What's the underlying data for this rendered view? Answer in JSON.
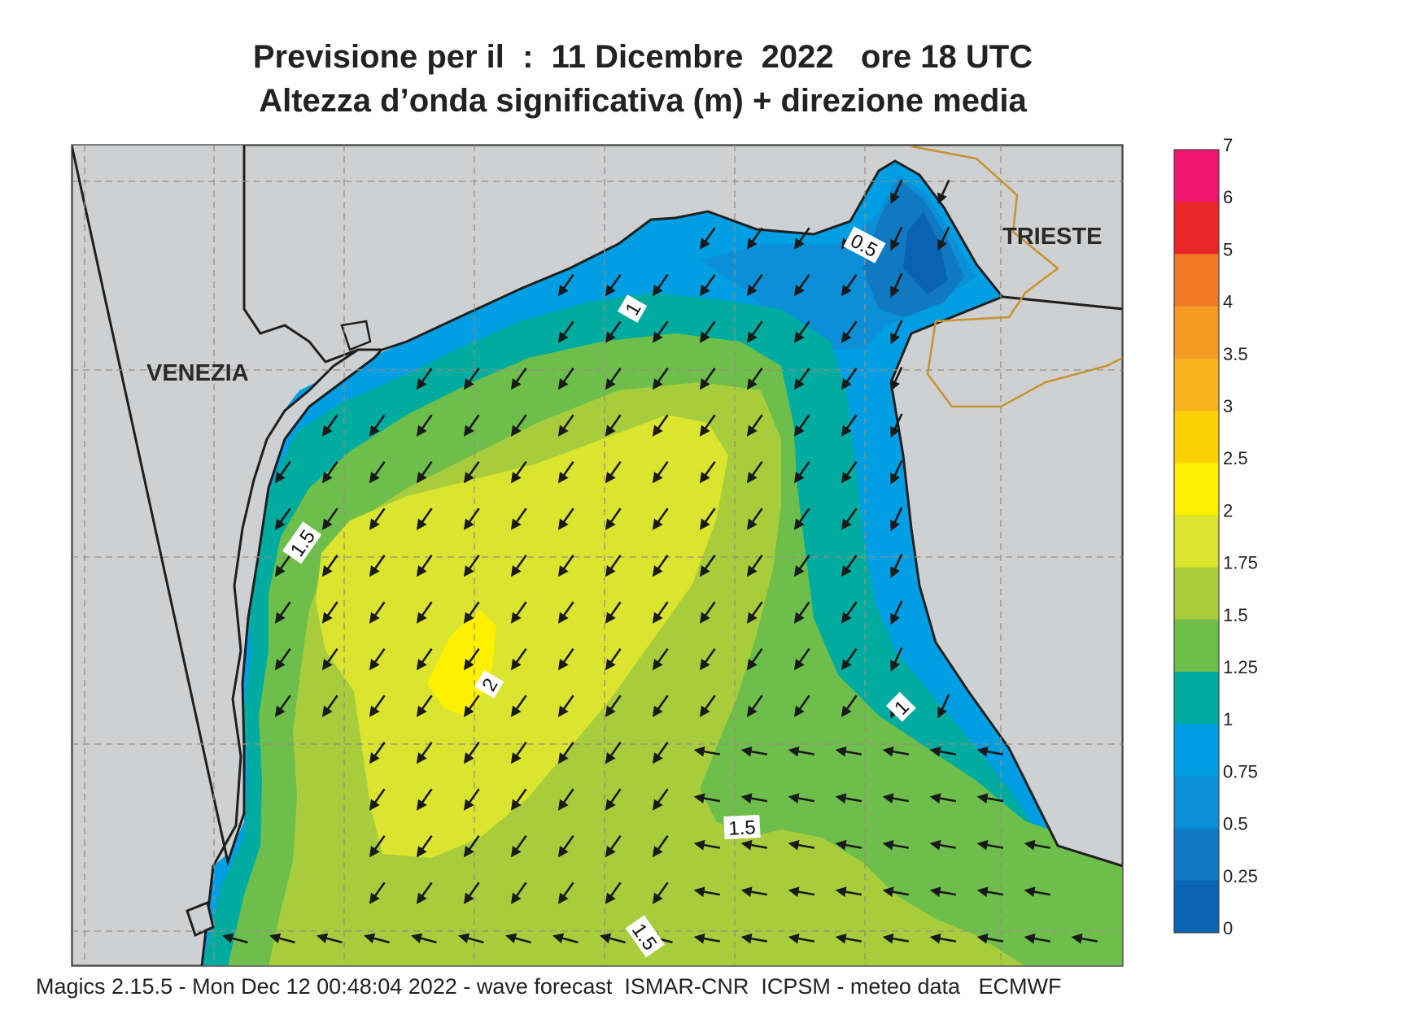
{
  "title": {
    "line1": "Previsione per il  :  11 Dicembre  2022   ore 18 UTC",
    "line2": "Altezza d’onda significativa (m) + direzione media"
  },
  "cities": [
    {
      "name": "VENEZIA"
    },
    {
      "name": "TRIESTE"
    }
  ],
  "contour_labels": [
    "0.5",
    "1",
    "1.5",
    "2",
    "1",
    "1.5",
    "1.5"
  ],
  "colorbar": {
    "ticks": [
      "7",
      "6",
      "5",
      "4",
      "3.5",
      "3",
      "2.5",
      "2",
      "1.75",
      "1.5",
      "1.25",
      "1",
      "0.75",
      "0.5",
      "0.25",
      "0"
    ],
    "colors": [
      "#f0166e",
      "#e8262a",
      "#f07a26",
      "#f59a22",
      "#f7b41f",
      "#fbd205",
      "#fdf000",
      "#dbe52f",
      "#a8cd3c",
      "#6dbe4b",
      "#00ac9f",
      "#009fe3",
      "#0b8fd6",
      "#0f79c2",
      "#0a63b2"
    ]
  },
  "colors": {
    "land": "#cfd0d2",
    "coast": "#1f1f1f",
    "border": "#c8922d",
    "grid": "#9a8f80",
    "arrow": "#1a1a1a"
  },
  "wave_direction": "SW",
  "footer": "Magics 2.15.5 - Mon Dec 12 00:48:04 2022 - wave forecast  ISMAR-CNR  ICPSM - meteo data   ECMWF"
}
